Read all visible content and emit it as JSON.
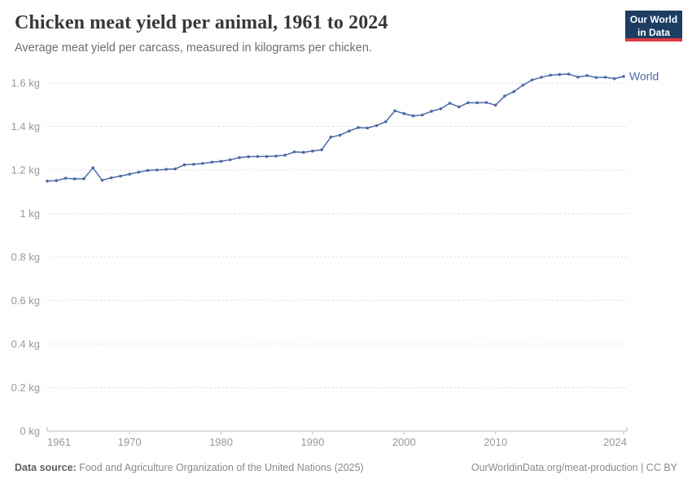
{
  "header": {
    "title": "Chicken meat yield per animal, 1961 to 2024",
    "subtitle": "Average meat yield per carcass, measured in kilograms per chicken."
  },
  "logo": {
    "line1": "Our World",
    "line2": "in Data"
  },
  "chart_data": {
    "type": "line",
    "title": "Chicken meat yield per animal, 1961 to 2024",
    "xlabel": "",
    "ylabel": "kilograms per chicken",
    "xlim": [
      1961,
      2024
    ],
    "ylim": [
      0,
      1.6
    ],
    "grid": "horizontal-dashed",
    "legend_position": "end-of-line-label",
    "x_ticks": [
      1961,
      1970,
      1980,
      1990,
      2000,
      2010,
      2024
    ],
    "y_ticks": [
      0,
      0.2,
      0.4,
      0.6,
      0.8,
      1,
      1.2,
      1.4,
      1.6
    ],
    "y_tick_suffix": " kg",
    "x": [
      1961,
      1962,
      1963,
      1964,
      1965,
      1966,
      1967,
      1968,
      1969,
      1970,
      1971,
      1972,
      1973,
      1974,
      1975,
      1976,
      1977,
      1978,
      1979,
      1980,
      1981,
      1982,
      1983,
      1984,
      1985,
      1986,
      1987,
      1988,
      1989,
      1990,
      1991,
      1992,
      1993,
      1994,
      1995,
      1996,
      1997,
      1998,
      1999,
      2000,
      2001,
      2002,
      2003,
      2004,
      2005,
      2006,
      2007,
      2008,
      2009,
      2010,
      2011,
      2012,
      2013,
      2014,
      2015,
      2016,
      2017,
      2018,
      2019,
      2020,
      2021,
      2022,
      2023,
      2024
    ],
    "series": [
      {
        "name": "World",
        "color": "#4c69a7",
        "values": [
          1.149,
          1.151,
          1.162,
          1.159,
          1.16,
          1.21,
          1.153,
          1.164,
          1.172,
          1.181,
          1.19,
          1.198,
          1.2,
          1.203,
          1.205,
          1.224,
          1.226,
          1.23,
          1.236,
          1.24,
          1.247,
          1.257,
          1.261,
          1.262,
          1.262,
          1.264,
          1.268,
          1.283,
          1.281,
          1.287,
          1.293,
          1.351,
          1.36,
          1.379,
          1.395,
          1.393,
          1.404,
          1.422,
          1.472,
          1.459,
          1.449,
          1.453,
          1.47,
          1.481,
          1.507,
          1.49,
          1.509,
          1.509,
          1.51,
          1.498,
          1.54,
          1.56,
          1.59,
          1.614,
          1.626,
          1.636,
          1.639,
          1.641,
          1.627,
          1.634,
          1.625,
          1.626,
          1.62,
          1.63
        ]
      }
    ],
    "colors": {
      "grid": "#dcdcdc",
      "axis": "#bdbdbd",
      "tick_label": "#999999"
    }
  },
  "footer": {
    "source_label": "Data source:",
    "source_text": " Food and Agriculture Organization of the United Nations (2025)",
    "credit": "OurWorldinData.org/meat-production | CC BY"
  }
}
